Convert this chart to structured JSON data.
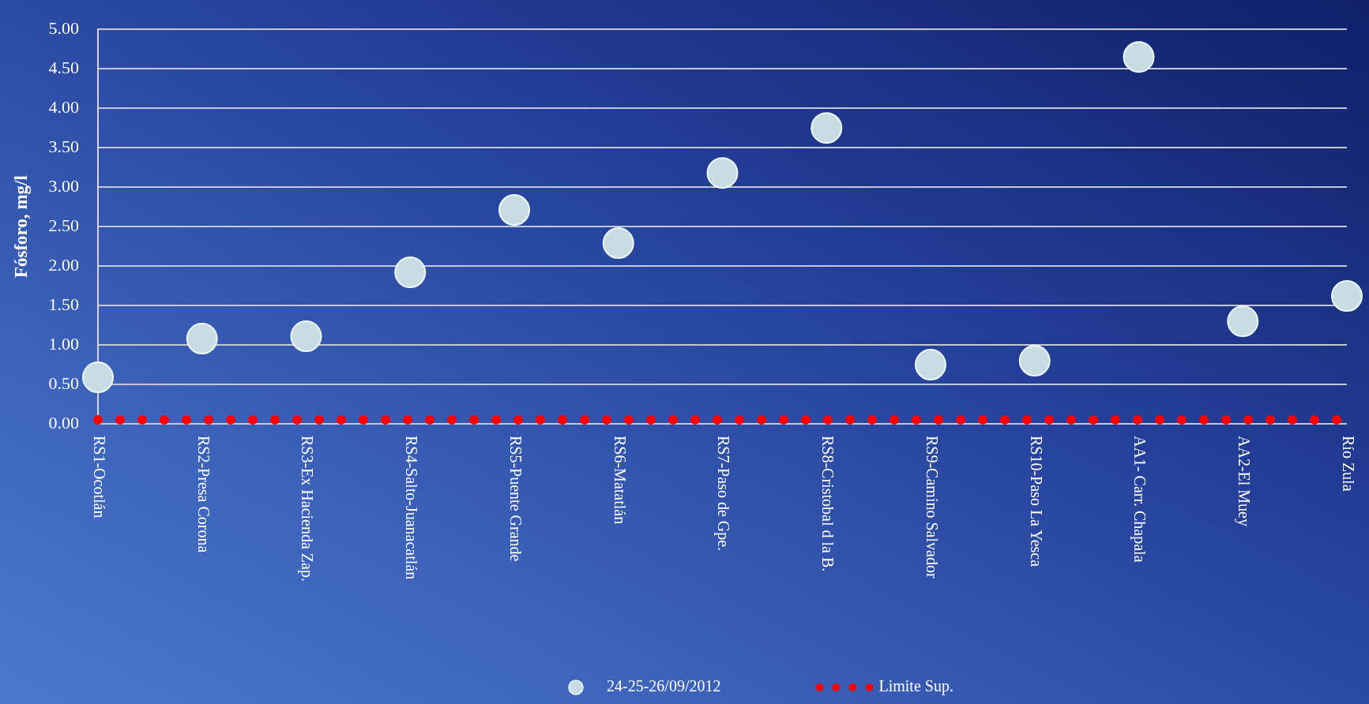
{
  "chart_data": {
    "type": "scatter",
    "ylabel": "Fósforo, mg/l",
    "categories": [
      "RS1-Ocotlán",
      "RS2-Presa Corona",
      "RS3-Ex Hacienda Zap.",
      "RS4-Salto-Juanacatlán",
      "RS5-Puente Grande",
      "RS6-Matatlán",
      "RS7-Paso de Gpe.",
      "RS8-Cristobal d la B.",
      "RS9-Camino Salvador",
      "RS10-Paso La Yesca",
      "AA1- Carr. Chapala",
      "AA2-El Muey",
      "Río Zula"
    ],
    "series": [
      {
        "name": "24-25-26/09/2012",
        "color": "#c8dde3",
        "marker": "circle",
        "values": [
          0.59,
          1.08,
          1.11,
          1.92,
          2.71,
          2.29,
          3.18,
          3.75,
          0.75,
          0.8,
          4.65,
          1.3,
          1.62
        ]
      },
      {
        "name": "Limite Sup.",
        "type": "line",
        "color": "#ff0000",
        "line_style": "dotted",
        "marker": "none",
        "values": [
          0.05,
          0.05,
          0.05,
          0.05,
          0.05,
          0.05,
          0.05,
          0.05,
          0.05,
          0.05,
          0.05,
          0.05,
          0.05
        ]
      }
    ],
    "ylim": [
      0,
      5
    ],
    "yticks": [
      {
        "value": 0,
        "label": "0.00"
      },
      {
        "value": 0.5,
        "label": "0.50"
      },
      {
        "value": 1,
        "label": "1.00"
      },
      {
        "value": 1.5,
        "label": "1.50"
      },
      {
        "value": 2,
        "label": "2.00"
      },
      {
        "value": 2.5,
        "label": "2.50"
      },
      {
        "value": 3,
        "label": "3.00"
      },
      {
        "value": 3.5,
        "label": "3.50"
      },
      {
        "value": 4,
        "label": "4.00"
      },
      {
        "value": 4.5,
        "label": "4.50"
      },
      {
        "value": 5,
        "label": "5.00"
      }
    ],
    "grid": "y",
    "legend": "bottom"
  }
}
